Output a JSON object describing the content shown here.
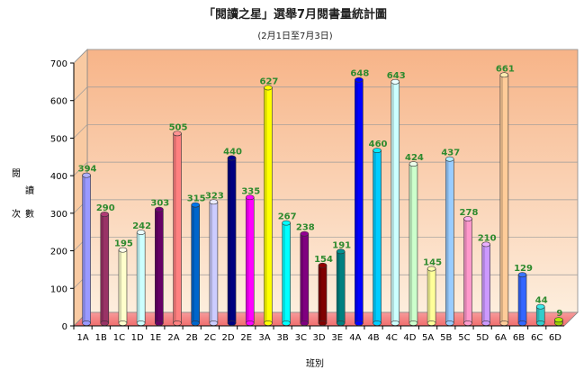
{
  "chart_data": {
    "type": "bar",
    "title": "「閱讀之星」選舉7月閱書量統計圖",
    "subtitle": "(2月1日至7月3日)",
    "xlabel": "班別",
    "ylabel": "閱讀次數",
    "ylim": [
      0,
      700
    ],
    "yticks": [
      "0",
      "100",
      "200",
      "300",
      "400",
      "500",
      "600",
      "700"
    ],
    "grid": true,
    "legend": "none",
    "categories": [
      "1A",
      "1B",
      "1C",
      "1D",
      "1E",
      "2A",
      "2B",
      "2C",
      "2D",
      "2E",
      "3A",
      "3B",
      "3C",
      "3D",
      "3E",
      "4A",
      "4B",
      "4C",
      "4D",
      "5A",
      "5B",
      "5C",
      "5D",
      "6A",
      "6B",
      "6C",
      "6D"
    ],
    "values": [
      394,
      290,
      195,
      242,
      303,
      505,
      315,
      323,
      440,
      335,
      627,
      267,
      238,
      154,
      191,
      648,
      460,
      643,
      424,
      145,
      437,
      278,
      210,
      661,
      129,
      44,
      9
    ],
    "colors": [
      "#9999ff",
      "#993366",
      "#ffffcc",
      "#ccffff",
      "#660066",
      "#ff8080",
      "#0066cc",
      "#ccccff",
      "#000080",
      "#ff00ff",
      "#ffff00",
      "#00ffff",
      "#800080",
      "#800000",
      "#008080",
      "#0000ff",
      "#00ccff",
      "#ccffff",
      "#ccffcc",
      "#ffff99",
      "#99ccff",
      "#ff99cc",
      "#cc99ff",
      "#ffcc99",
      "#3366ff",
      "#33cccc",
      "#99cc00"
    ]
  }
}
